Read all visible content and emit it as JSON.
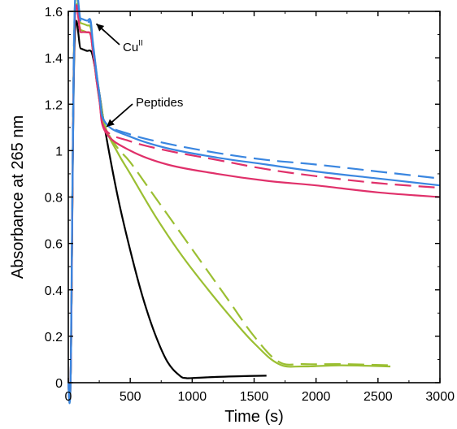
{
  "chart_data": {
    "type": "line",
    "xlabel": "Time (s)",
    "ylabel": "Absorbance at 265 nm",
    "xlim": [
      0,
      3000
    ],
    "ylim": [
      0,
      1.6
    ],
    "xticks": [
      0,
      500,
      1000,
      1500,
      2000,
      2500,
      3000
    ],
    "xtick_labels": [
      "0",
      "500",
      "1000",
      "1500",
      "2000",
      "2500",
      "3000"
    ],
    "yticks": [
      0,
      0.2,
      0.4,
      0.6,
      0.8,
      1,
      1.2,
      1.4,
      1.6
    ],
    "ytick_labels": [
      "0",
      "0.2",
      "0.4",
      "0.6",
      "0.8",
      "1",
      "1.2",
      "1.4",
      "1.6"
    ],
    "grid": false,
    "annotations": [
      {
        "text": "Cu",
        "superscript": "II",
        "arrow_to": [
          200,
          1.55
        ]
      },
      {
        "text": "Peptides",
        "arrow_to": [
          290,
          1.11
        ]
      }
    ],
    "series": [
      {
        "color": "#000000",
        "dash": "solid",
        "x": [
          0,
          20,
          50,
          100,
          150,
          180,
          200,
          250,
          300,
          400,
          500,
          600,
          700,
          800,
          900,
          950,
          1000,
          1200,
          1400,
          1600
        ],
        "y": [
          0,
          0.05,
          1.45,
          1.44,
          1.43,
          1.43,
          1.4,
          1.25,
          1.08,
          0.8,
          0.57,
          0.37,
          0.21,
          0.09,
          0.03,
          0.02,
          0.02,
          0.025,
          0.028,
          0.03
        ]
      },
      {
        "color": "#9bbf32",
        "dash": "solid",
        "x": [
          0,
          20,
          50,
          100,
          150,
          180,
          200,
          250,
          300,
          400,
          500,
          700,
          900,
          1100,
          1300,
          1500,
          1700,
          1900,
          2200,
          2600
        ],
        "y": [
          0,
          0.05,
          1.56,
          1.55,
          1.54,
          1.53,
          1.45,
          1.25,
          1.1,
          0.99,
          0.9,
          0.72,
          0.56,
          0.42,
          0.29,
          0.17,
          0.08,
          0.07,
          0.075,
          0.07
        ]
      },
      {
        "color": "#9bbf32",
        "dash": "dashed",
        "x": [
          0,
          20,
          50,
          100,
          150,
          180,
          200,
          250,
          300,
          400,
          500,
          700,
          900,
          1100,
          1300,
          1500,
          1700,
          1900,
          2200,
          2600
        ],
        "y": [
          0,
          0.05,
          1.53,
          1.52,
          1.51,
          1.5,
          1.42,
          1.22,
          1.1,
          1.01,
          0.95,
          0.8,
          0.65,
          0.5,
          0.35,
          0.2,
          0.09,
          0.08,
          0.08,
          0.075
        ]
      },
      {
        "color": "#e0306a",
        "dash": "solid",
        "x": [
          0,
          20,
          50,
          100,
          150,
          180,
          200,
          250,
          300,
          500,
          800,
          1200,
          1600,
          2000,
          2500,
          3000
        ],
        "y": [
          0,
          0.05,
          1.51,
          1.51,
          1.51,
          1.5,
          1.42,
          1.22,
          1.08,
          1.0,
          0.94,
          0.9,
          0.87,
          0.85,
          0.82,
          0.8
        ]
      },
      {
        "color": "#e0306a",
        "dash": "dashed",
        "x": [
          0,
          20,
          50,
          100,
          150,
          180,
          200,
          250,
          300,
          500,
          800,
          1200,
          1600,
          2000,
          2500,
          3000
        ],
        "y": [
          0,
          0.05,
          1.51,
          1.51,
          1.51,
          1.5,
          1.42,
          1.22,
          1.09,
          1.04,
          1.0,
          0.96,
          0.92,
          0.89,
          0.86,
          0.84
        ]
      },
      {
        "color": "#3a86e0",
        "dash": "solid",
        "x": [
          0,
          20,
          50,
          100,
          150,
          180,
          200,
          250,
          300,
          500,
          800,
          1200,
          1600,
          2000,
          2500,
          3000
        ],
        "y": [
          0,
          0.05,
          1.58,
          1.57,
          1.56,
          1.56,
          1.46,
          1.25,
          1.12,
          1.06,
          1.01,
          0.97,
          0.94,
          0.91,
          0.88,
          0.85
        ]
      },
      {
        "color": "#3a86e0",
        "dash": "dashed",
        "x": [
          0,
          20,
          50,
          100,
          150,
          180,
          200,
          250,
          300,
          500,
          800,
          1200,
          1600,
          2000,
          2500,
          3000
        ],
        "y": [
          0,
          0.05,
          1.57,
          1.56,
          1.55,
          1.55,
          1.45,
          1.24,
          1.12,
          1.07,
          1.03,
          0.99,
          0.96,
          0.94,
          0.91,
          0.88
        ]
      }
    ]
  }
}
